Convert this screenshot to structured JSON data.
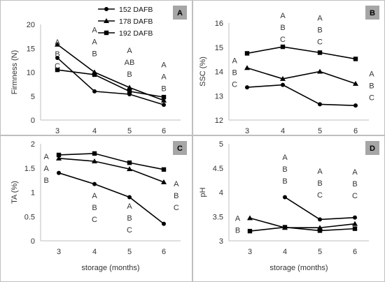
{
  "chart_data": [
    {
      "type": "line",
      "panel": "A",
      "ylabel": "Firmness (N)",
      "xlabel": "",
      "categories": [
        "3",
        "4",
        "5",
        "6"
      ],
      "ylim": [
        0,
        20
      ],
      "yticks": [
        "0",
        "5",
        "10",
        "15",
        "20"
      ],
      "legend": {
        "placement": "top-right",
        "entries": [
          "152 DAFB",
          "178 DAFB",
          "192 DAFB"
        ]
      },
      "series": [
        {
          "name": "152 DAFB",
          "marker": "circle",
          "values": [
            13.0,
            6.0,
            5.4,
            3.2
          ]
        },
        {
          "name": "178 DAFB",
          "marker": "triangle",
          "values": [
            15.8,
            10.0,
            6.8,
            4.1
          ]
        },
        {
          "name": "192 DAFB",
          "marker": "square",
          "values": [
            10.5,
            9.5,
            6.0,
            4.8
          ]
        }
      ],
      "letters": [
        {
          "x": "3",
          "lines": [
            "A",
            "B",
            "C"
          ],
          "y_top": 15.8
        },
        {
          "x": "4",
          "lines": [
            "A",
            "A",
            "B"
          ],
          "y_top": 18.3
        },
        {
          "x": "5",
          "lines": [
            "A",
            "AB",
            "B"
          ],
          "y_top": 14.0
        },
        {
          "x": "6",
          "lines": [
            "A",
            "A",
            "B"
          ],
          "y_top": 11.0
        }
      ]
    },
    {
      "type": "line",
      "panel": "B",
      "ylabel": "SSC (%)",
      "xlabel": "",
      "categories": [
        "3",
        "4",
        "5",
        "6"
      ],
      "ylim": [
        12,
        16
      ],
      "yticks": [
        "12",
        "13",
        "14",
        "15",
        "16"
      ],
      "series": [
        {
          "name": "152 DAFB",
          "marker": "circle",
          "values": [
            13.35,
            13.45,
            12.65,
            12.6
          ]
        },
        {
          "name": "178 DAFB",
          "marker": "triangle",
          "values": [
            14.15,
            13.7,
            14.0,
            13.5
          ]
        },
        {
          "name": "192 DAFB",
          "marker": "square",
          "values": [
            14.75,
            15.02,
            14.78,
            14.52
          ]
        }
      ],
      "letters": [
        {
          "x": "3",
          "lines": [
            "A",
            "B",
            "C"
          ],
          "y_top": 14.35,
          "offset": -0.35
        },
        {
          "x": "4",
          "lines": [
            "A",
            "B",
            "C"
          ],
          "y_top": 16.2
        },
        {
          "x": "5",
          "lines": [
            "A",
            "B",
            "C"
          ],
          "y_top": 16.1
        },
        {
          "x": "6",
          "lines": [
            "A",
            "B",
            "C"
          ],
          "y_top": 13.8,
          "offset": 0.45
        }
      ]
    },
    {
      "type": "line",
      "panel": "C",
      "ylabel": "TA (%)",
      "xlabel": "storage (months)",
      "categories": [
        "3",
        "4",
        "5",
        "6"
      ],
      "ylim": [
        0,
        2
      ],
      "yticks": [
        "0",
        "0.5",
        "1",
        "1.5",
        "2"
      ],
      "series": [
        {
          "name": "152 DAFB",
          "marker": "circle",
          "values": [
            1.4,
            1.17,
            0.9,
            0.35
          ]
        },
        {
          "name": "178 DAFB",
          "marker": "triangle",
          "values": [
            1.7,
            1.64,
            1.48,
            1.21
          ]
        },
        {
          "name": "192 DAFB",
          "marker": "square",
          "values": [
            1.77,
            1.8,
            1.61,
            1.47
          ]
        }
      ],
      "letters": [
        {
          "x": "3",
          "lines": [
            "A",
            "A",
            "B"
          ],
          "y_top": 1.68,
          "offset": -0.35
        },
        {
          "x": "4",
          "lines": [
            "A",
            "B",
            "C"
          ],
          "y_top": 0.88
        },
        {
          "x": "5",
          "lines": [
            "A",
            "B",
            "C"
          ],
          "y_top": 0.66
        },
        {
          "x": "6",
          "lines": [
            "A",
            "B",
            "C"
          ],
          "y_top": 1.12,
          "offset": 0.35
        }
      ]
    },
    {
      "type": "line",
      "panel": "D",
      "ylabel": "pH",
      "xlabel": "storage (months)",
      "categories": [
        "3",
        "4",
        "5",
        "6"
      ],
      "ylim": [
        3,
        5
      ],
      "yticks": [
        "3",
        "3.5",
        "4",
        "4.5",
        "5"
      ],
      "series": [
        {
          "name": "152 DAFB",
          "marker": "circle",
          "values": [
            null,
            3.9,
            3.44,
            3.48
          ]
        },
        {
          "name": "178 DAFB",
          "marker": "triangle",
          "values": [
            3.47,
            3.27,
            3.27,
            3.35
          ]
        },
        {
          "name": "192 DAFB",
          "marker": "square",
          "values": [
            3.2,
            3.28,
            3.21,
            3.25
          ]
        }
      ],
      "letters": [
        {
          "x": "3",
          "lines": [
            "A",
            "B"
          ],
          "y_top": 3.41,
          "offset": -0.35
        },
        {
          "x": "4",
          "lines": [
            "A",
            "B",
            "B"
          ],
          "y_top": 4.67
        },
        {
          "x": "5",
          "lines": [
            "A",
            "B",
            "C"
          ],
          "y_top": 4.38
        },
        {
          "x": "6",
          "lines": [
            "A",
            "B",
            "C"
          ],
          "y_top": 4.37
        }
      ]
    }
  ]
}
